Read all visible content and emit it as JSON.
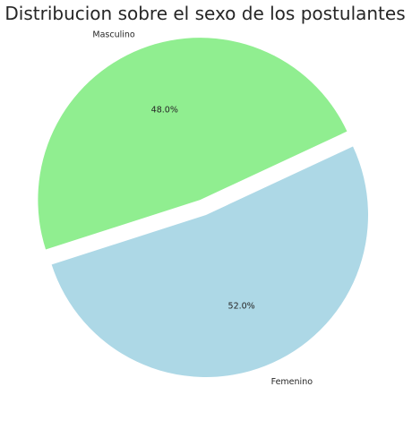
{
  "chart_data": {
    "type": "pie",
    "title": "Distribucion sobre el sexo de los postulantes",
    "slices": [
      {
        "label": "Masculino",
        "value": 48.0,
        "pct_label": "48.0%",
        "color": "#90ee90",
        "explode": 0.1
      },
      {
        "label": "Femenino",
        "value": 52.0,
        "pct_label": "52.0%",
        "color": "#add8e6",
        "explode": 0.0
      }
    ],
    "start_angle_deg": 25,
    "counterclockwise": true
  }
}
